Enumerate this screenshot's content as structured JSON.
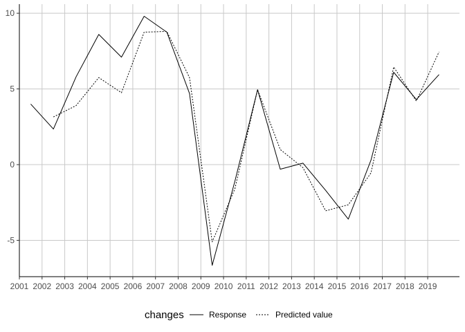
{
  "chart_data": {
    "type": "line",
    "x": [
      2001.5,
      2002.5,
      2003.5,
      2004.5,
      2005.5,
      2006.5,
      2007.5,
      2008.5,
      2009.5,
      2010.5,
      2011.5,
      2012.5,
      2013.5,
      2014.5,
      2015.5,
      2016.5,
      2017.5,
      2018.5,
      2019.5
    ],
    "x_ticks": [
      2001,
      2002,
      2003,
      2004,
      2005,
      2006,
      2007,
      2008,
      2009,
      2010,
      2011,
      2012,
      2013,
      2014,
      2015,
      2016,
      2017,
      2018,
      2019
    ],
    "x_tick_labels": [
      "2001",
      "2002",
      "2003",
      "2004",
      "2005",
      "2006",
      "2007",
      "2008",
      "2009",
      "2010",
      "2011",
      "2012",
      "2013",
      "2014",
      "2015",
      "2016",
      "2017",
      "2018",
      "2019"
    ],
    "y_ticks": [
      -5,
      0,
      5,
      10
    ],
    "y_tick_labels": [
      "-5",
      "0",
      "5",
      "10"
    ],
    "xlim": [
      2001,
      2020.4
    ],
    "ylim": [
      -7.4,
      10.6
    ],
    "grid": true,
    "legend_position": "bottom",
    "legend_title": "changes",
    "series": [
      {
        "name": "Response",
        "style": "solid",
        "values": [
          4.0,
          2.35,
          5.8,
          8.6,
          7.1,
          9.8,
          8.75,
          4.7,
          -6.65,
          -1.1,
          4.95,
          -0.3,
          0.1,
          -1.7,
          -3.6,
          0.3,
          6.1,
          4.3,
          5.95
        ]
      },
      {
        "name": "Predicted value",
        "style": "dotted",
        "values": [
          null,
          3.15,
          3.9,
          5.75,
          4.75,
          8.75,
          8.8,
          5.75,
          -5.1,
          -1.6,
          4.95,
          1.0,
          -0.2,
          -3.05,
          -2.65,
          -0.55,
          6.45,
          4.2,
          7.45
        ]
      }
    ],
    "colors": {
      "line": "#000000",
      "grid": "#c8c8c8",
      "axis": "#000000"
    }
  }
}
